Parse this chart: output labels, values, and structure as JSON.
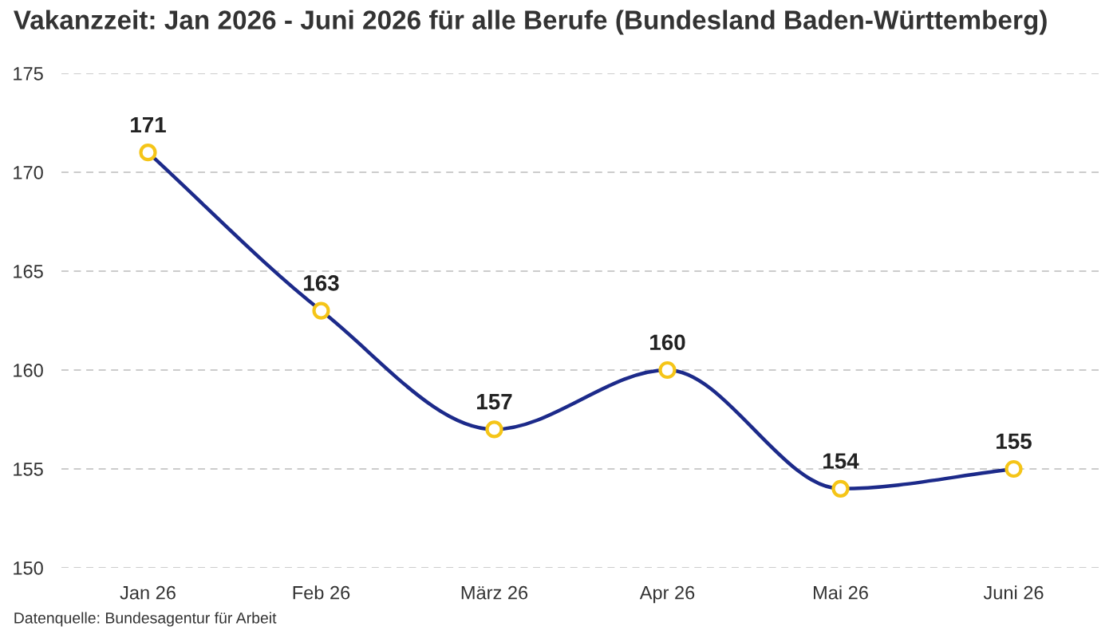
{
  "chart_data": {
    "type": "line",
    "title": "Vakanzzeit: Jan 2026 - Juni 2026 für alle Berufe (Bundesland Baden-Württemberg)",
    "categories": [
      "Jan 26",
      "Feb 26",
      "März 26",
      "Apr 26",
      "Mai 26",
      "Juni 26"
    ],
    "series": [
      {
        "color": "#1c2a8a",
        "values": [
          171,
          163,
          157,
          160,
          154,
          155
        ]
      }
    ],
    "ylim": [
      150,
      175
    ],
    "yticks": [
      150,
      155,
      160,
      165,
      170,
      175
    ],
    "grid": "y",
    "marker": "circle",
    "line_style": "solid",
    "data_labels": true,
    "annotations": [
      "Datenquelle: Bundesagentur für Arbeit"
    ]
  }
}
